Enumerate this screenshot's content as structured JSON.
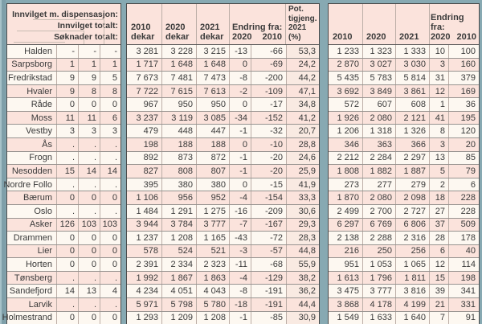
{
  "colors": {
    "background_teal": "#87a9b2",
    "row_pink": "#fbe3dc",
    "row_cream": "#fdf8f1",
    "panel_border": "#4a4a4a",
    "grid_line": "#bcaea7"
  },
  "left_header": {
    "dispensasjon_label": "Innvilget m. dispensasjon:",
    "innvilget_label": "Innvilget totalt:",
    "soknader_label": "Søknader totalt:"
  },
  "middle_header": {
    "year_cols": [
      {
        "line1": "2010",
        "line2": "dekar"
      },
      {
        "line1": "2020",
        "line2": "dekar"
      },
      {
        "line1": "2021",
        "line2": "dekar"
      }
    ],
    "endring_label": "Endring fra:",
    "endring_sub": [
      "2020",
      "2010"
    ],
    "pot_lines": [
      "Pot.",
      "tigjeng.",
      "2021 (%)"
    ]
  },
  "right_header": {
    "year_cols": [
      "2010",
      "2020",
      "2021"
    ],
    "endring_label": "Endring fra:",
    "endring_sub": [
      "2020",
      "2010"
    ]
  },
  "municipalities": [
    {
      "name": "Halden",
      "soknader_totalt": "-",
      "innvilget_totalt": "-",
      "innvilget_dispensasjon": "-",
      "dekar_2010": "3 281",
      "dekar_2020": "3 228",
      "dekar_2021": "3 215",
      "endring_fra_2020": "-13",
      "endring_fra_2010": "-66",
      "pot_tilgjengelig_2021_pct": "53,3",
      "right_2010": "1 233",
      "right_2020": "1 323",
      "right_2021": "1 333",
      "right_endring_2020": "10",
      "right_endring_2010": "100"
    },
    {
      "name": "Sarpsborg",
      "soknader_totalt": "1",
      "innvilget_totalt": "1",
      "innvilget_dispensasjon": "1",
      "dekar_2010": "1 717",
      "dekar_2020": "1 648",
      "dekar_2021": "1 648",
      "endring_fra_2020": "0",
      "endring_fra_2010": "-69",
      "pot_tilgjengelig_2021_pct": "24,2",
      "right_2010": "2 870",
      "right_2020": "3 027",
      "right_2021": "3 030",
      "right_endring_2020": "3",
      "right_endring_2010": "160"
    },
    {
      "name": "Fredrikstad",
      "soknader_totalt": "9",
      "innvilget_totalt": "9",
      "innvilget_dispensasjon": "5",
      "dekar_2010": "7 673",
      "dekar_2020": "7 481",
      "dekar_2021": "7 473",
      "endring_fra_2020": "-8",
      "endring_fra_2010": "-200",
      "pot_tilgjengelig_2021_pct": "44,2",
      "right_2010": "5 435",
      "right_2020": "5 783",
      "right_2021": "5 814",
      "right_endring_2020": "31",
      "right_endring_2010": "379"
    },
    {
      "name": "Hvaler",
      "soknader_totalt": "9",
      "innvilget_totalt": "8",
      "innvilget_dispensasjon": "8",
      "dekar_2010": "7 722",
      "dekar_2020": "7 615",
      "dekar_2021": "7 613",
      "endring_fra_2020": "-2",
      "endring_fra_2010": "-109",
      "pot_tilgjengelig_2021_pct": "47,1",
      "right_2010": "3 692",
      "right_2020": "3 849",
      "right_2021": "3 861",
      "right_endring_2020": "12",
      "right_endring_2010": "169"
    },
    {
      "name": "Råde",
      "soknader_totalt": "0",
      "innvilget_totalt": "0",
      "innvilget_dispensasjon": "0",
      "dekar_2010": "967",
      "dekar_2020": "950",
      "dekar_2021": "950",
      "endring_fra_2020": "0",
      "endring_fra_2010": "-17",
      "pot_tilgjengelig_2021_pct": "34,8",
      "right_2010": "572",
      "right_2020": "607",
      "right_2021": "608",
      "right_endring_2020": "1",
      "right_endring_2010": "36"
    },
    {
      "name": "Moss",
      "soknader_totalt": "11",
      "innvilget_totalt": "11",
      "innvilget_dispensasjon": "6",
      "dekar_2010": "3 237",
      "dekar_2020": "3 119",
      "dekar_2021": "3 085",
      "endring_fra_2020": "-34",
      "endring_fra_2010": "-152",
      "pot_tilgjengelig_2021_pct": "41,2",
      "right_2010": "1 926",
      "right_2020": "2 080",
      "right_2021": "2 121",
      "right_endring_2020": "41",
      "right_endring_2010": "195"
    },
    {
      "name": "Vestby",
      "soknader_totalt": "3",
      "innvilget_totalt": "3",
      "innvilget_dispensasjon": "3",
      "dekar_2010": "479",
      "dekar_2020": "448",
      "dekar_2021": "447",
      "endring_fra_2020": "-1",
      "endring_fra_2010": "-32",
      "pot_tilgjengelig_2021_pct": "20,7",
      "right_2010": "1 206",
      "right_2020": "1 318",
      "right_2021": "1 326",
      "right_endring_2020": "8",
      "right_endring_2010": "120"
    },
    {
      "name": "Ås",
      "soknader_totalt": ".",
      "innvilget_totalt": ".",
      "innvilget_dispensasjon": ".",
      "dekar_2010": "198",
      "dekar_2020": "188",
      "dekar_2021": "188",
      "endring_fra_2020": "0",
      "endring_fra_2010": "-10",
      "pot_tilgjengelig_2021_pct": "28,8",
      "right_2010": "346",
      "right_2020": "363",
      "right_2021": "366",
      "right_endring_2020": "3",
      "right_endring_2010": "20"
    },
    {
      "name": "Frogn",
      "soknader_totalt": ".",
      "innvilget_totalt": ".",
      "innvilget_dispensasjon": ".",
      "dekar_2010": "892",
      "dekar_2020": "873",
      "dekar_2021": "872",
      "endring_fra_2020": "-1",
      "endring_fra_2010": "-20",
      "pot_tilgjengelig_2021_pct": "24,6",
      "right_2010": "2 212",
      "right_2020": "2 284",
      "right_2021": "2 297",
      "right_endring_2020": "13",
      "right_endring_2010": "85"
    },
    {
      "name": "Nesodden",
      "soknader_totalt": "15",
      "innvilget_totalt": "14",
      "innvilget_dispensasjon": "14",
      "dekar_2010": "827",
      "dekar_2020": "808",
      "dekar_2021": "807",
      "endring_fra_2020": "-1",
      "endring_fra_2010": "-20",
      "pot_tilgjengelig_2021_pct": "25,9",
      "right_2010": "1 808",
      "right_2020": "1 882",
      "right_2021": "1 887",
      "right_endring_2020": "5",
      "right_endring_2010": "79"
    },
    {
      "name": "Nordre Follo",
      "soknader_totalt": ".",
      "innvilget_totalt": ".",
      "innvilget_dispensasjon": ".",
      "dekar_2010": "395",
      "dekar_2020": "380",
      "dekar_2021": "380",
      "endring_fra_2020": "0",
      "endring_fra_2010": "-15",
      "pot_tilgjengelig_2021_pct": "41,9",
      "right_2010": "273",
      "right_2020": "277",
      "right_2021": "279",
      "right_endring_2020": "2",
      "right_endring_2010": "6"
    },
    {
      "name": "Bærum",
      "soknader_totalt": "0",
      "innvilget_totalt": "0",
      "innvilget_dispensasjon": "0",
      "dekar_2010": "1 106",
      "dekar_2020": "956",
      "dekar_2021": "952",
      "endring_fra_2020": "-4",
      "endring_fra_2010": "-154",
      "pot_tilgjengelig_2021_pct": "33,3",
      "right_2010": "1 870",
      "right_2020": "2 080",
      "right_2021": "2 098",
      "right_endring_2020": "18",
      "right_endring_2010": "228"
    },
    {
      "name": "Oslo",
      "soknader_totalt": ".",
      "innvilget_totalt": ".",
      "innvilget_dispensasjon": ".",
      "dekar_2010": "1 484",
      "dekar_2020": "1 291",
      "dekar_2021": "1 275",
      "endring_fra_2020": "-16",
      "endring_fra_2010": "-209",
      "pot_tilgjengelig_2021_pct": "30,6",
      "right_2010": "2 499",
      "right_2020": "2 700",
      "right_2021": "2 727",
      "right_endring_2020": "27",
      "right_endring_2010": "228"
    },
    {
      "name": "Asker",
      "soknader_totalt": "126",
      "innvilget_totalt": "103",
      "innvilget_dispensasjon": "103",
      "dekar_2010": "3 944",
      "dekar_2020": "3 784",
      "dekar_2021": "3 777",
      "endring_fra_2020": "-7",
      "endring_fra_2010": "-167",
      "pot_tilgjengelig_2021_pct": "29,3",
      "right_2010": "6 297",
      "right_2020": "6 769",
      "right_2021": "6 806",
      "right_endring_2020": "37",
      "right_endring_2010": "509"
    },
    {
      "name": "Drammen",
      "soknader_totalt": "0",
      "innvilget_totalt": "0",
      "innvilget_dispensasjon": "0",
      "dekar_2010": "1 237",
      "dekar_2020": "1 208",
      "dekar_2021": "1 165",
      "endring_fra_2020": "-43",
      "endring_fra_2010": "-72",
      "pot_tilgjengelig_2021_pct": "28,3",
      "right_2010": "2 138",
      "right_2020": "2 288",
      "right_2021": "2 316",
      "right_endring_2020": "28",
      "right_endring_2010": "178"
    },
    {
      "name": "Lier",
      "soknader_totalt": "0",
      "innvilget_totalt": "0",
      "innvilget_dispensasjon": "0",
      "dekar_2010": "578",
      "dekar_2020": "524",
      "dekar_2021": "521",
      "endring_fra_2020": "-3",
      "endring_fra_2010": "-57",
      "pot_tilgjengelig_2021_pct": "44,8",
      "right_2010": "216",
      "right_2020": "250",
      "right_2021": "256",
      "right_endring_2020": "6",
      "right_endring_2010": "40"
    },
    {
      "name": "Horten",
      "soknader_totalt": "0",
      "innvilget_totalt": "0",
      "innvilget_dispensasjon": "0",
      "dekar_2010": "2 391",
      "dekar_2020": "2 334",
      "dekar_2021": "2 323",
      "endring_fra_2020": "-11",
      "endring_fra_2010": "-68",
      "pot_tilgjengelig_2021_pct": "55,9",
      "right_2010": "951",
      "right_2020": "1 053",
      "right_2021": "1 065",
      "right_endring_2020": "12",
      "right_endring_2010": "114"
    },
    {
      "name": "Tønsberg",
      "soknader_totalt": ".",
      "innvilget_totalt": ".",
      "innvilget_dispensasjon": ".",
      "dekar_2010": "1 992",
      "dekar_2020": "1 867",
      "dekar_2021": "1 863",
      "endring_fra_2020": "-4",
      "endring_fra_2010": "-129",
      "pot_tilgjengelig_2021_pct": "38,2",
      "right_2010": "1 613",
      "right_2020": "1 796",
      "right_2021": "1 811",
      "right_endring_2020": "15",
      "right_endring_2010": "198"
    },
    {
      "name": "Sandefjord",
      "soknader_totalt": "14",
      "innvilget_totalt": "13",
      "innvilget_dispensasjon": "4",
      "dekar_2010": "4 234",
      "dekar_2020": "4 051",
      "dekar_2021": "4 043",
      "endring_fra_2020": "-8",
      "endring_fra_2010": "-191",
      "pot_tilgjengelig_2021_pct": "36,2",
      "right_2010": "3 475",
      "right_2020": "3 777",
      "right_2021": "3 816",
      "right_endring_2020": "39",
      "right_endring_2010": "341"
    },
    {
      "name": "Larvik",
      "soknader_totalt": ".",
      "innvilget_totalt": ".",
      "innvilget_dispensasjon": ".",
      "dekar_2010": "5 971",
      "dekar_2020": "5 798",
      "dekar_2021": "5 780",
      "endring_fra_2020": "-18",
      "endring_fra_2010": "-191",
      "pot_tilgjengelig_2021_pct": "44,4",
      "right_2010": "3 868",
      "right_2020": "4 178",
      "right_2021": "4 199",
      "right_endring_2020": "21",
      "right_endring_2010": "331"
    },
    {
      "name": "Holmestrand",
      "soknader_totalt": "0",
      "innvilget_totalt": "0",
      "innvilget_dispensasjon": "0",
      "dekar_2010": "1 293",
      "dekar_2020": "1 209",
      "dekar_2021": "1 208",
      "endring_fra_2020": "-1",
      "endring_fra_2010": "-85",
      "pot_tilgjengelig_2021_pct": "30,9",
      "right_2010": "1 549",
      "right_2020": "1 633",
      "right_2021": "1 640",
      "right_endring_2020": "7",
      "right_endring_2010": "91"
    }
  ]
}
